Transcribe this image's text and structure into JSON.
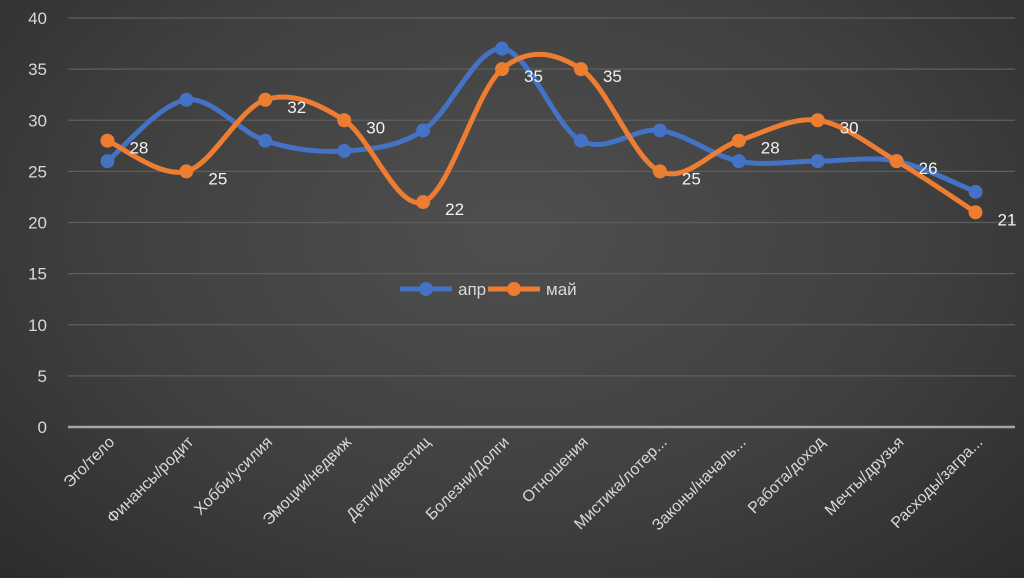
{
  "chart_data": {
    "type": "line",
    "title": "",
    "xlabel": "",
    "ylabel": "",
    "ylim": [
      0,
      40
    ],
    "yticks": [
      0,
      5,
      10,
      15,
      20,
      25,
      30,
      35,
      40
    ],
    "grid": true,
    "smooth": true,
    "legend_position": "center",
    "categories": [
      "Эго/тело",
      "Финансы/родит",
      "Хобби/усилия",
      "Эмоции/недвиж",
      "Дети/Инвестиц",
      "Болезни/Долги",
      "Отношения",
      "Мистика/лотер...",
      "Законы/началь...",
      "Работа/доход",
      "Мечты/друзья",
      "Расходы/загра..."
    ],
    "series": [
      {
        "name": "апр",
        "color": "#4472c4",
        "values": [
          26,
          32,
          28,
          27,
          29,
          37,
          28,
          29,
          26,
          26,
          26,
          23
        ],
        "data_labels": false
      },
      {
        "name": "май",
        "color": "#ed7d31",
        "values": [
          28,
          25,
          32,
          30,
          22,
          35,
          35,
          25,
          28,
          30,
          26,
          21
        ],
        "data_labels": true
      }
    ]
  }
}
